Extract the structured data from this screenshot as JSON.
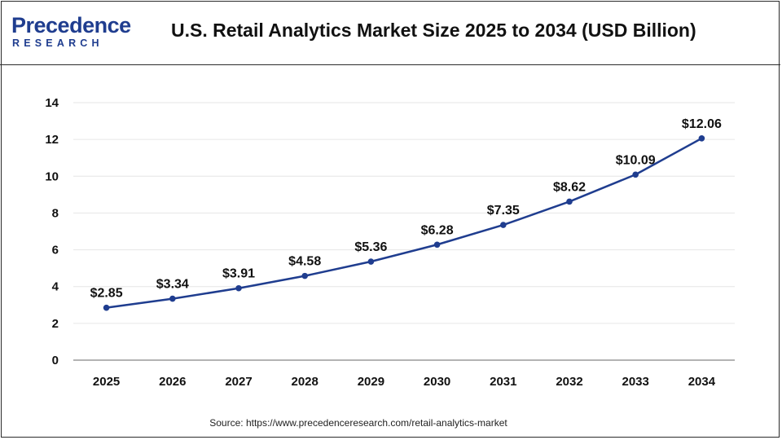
{
  "header": {
    "logo_main": "recedence",
    "logo_initial": "P",
    "logo_sub": "RESEARCH",
    "title": "U.S. Retail Analytics Market Size 2025 to 2034 (USD Billion)"
  },
  "footer": {
    "source": "Source: https://www.precedenceresearch.com/retail-analytics-market"
  },
  "colors": {
    "brand": "#1f3d8f",
    "line": "#1f3d8f",
    "grid": "#e6e6e6"
  },
  "chart_data": {
    "type": "line",
    "title": "U.S. Retail Analytics Market Size 2025 to 2034 (USD Billion)",
    "xlabel": "",
    "ylabel": "",
    "categories": [
      "2025",
      "2026",
      "2027",
      "2028",
      "2029",
      "2030",
      "2031",
      "2032",
      "2033",
      "2034"
    ],
    "series": [
      {
        "values": [
          2.85,
          3.34,
          3.91,
          4.58,
          5.36,
          6.28,
          7.35,
          8.62,
          10.09,
          12.06
        ],
        "labels": [
          "$2.85",
          "$3.34",
          "$3.91",
          "$4.58",
          "$5.36",
          "$6.28",
          "$7.35",
          "$8.62",
          "$10.09",
          "$12.06"
        ]
      }
    ],
    "ylim": [
      0,
      14
    ],
    "yticks": [
      "0",
      "2",
      "4",
      "6",
      "8",
      "10",
      "12",
      "14"
    ],
    "grid": true,
    "legend": "none"
  }
}
